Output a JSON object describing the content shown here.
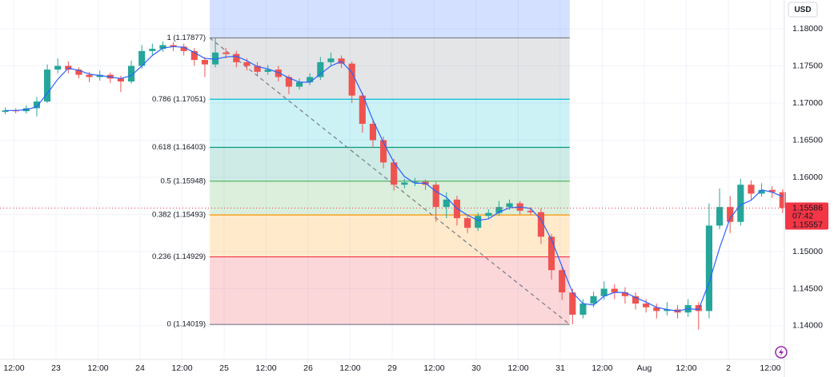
{
  "chart_data": {
    "type": "candlestick",
    "currency": "USD",
    "xlim": [
      0,
      224
    ],
    "xticks": [
      {
        "value": 4,
        "label": "12:00"
      },
      {
        "value": 16,
        "label": "23"
      },
      {
        "value": 28,
        "label": "12:00"
      },
      {
        "value": 40,
        "label": "24"
      },
      {
        "value": 52,
        "label": "12:00"
      },
      {
        "value": 64,
        "label": "25"
      },
      {
        "value": 76,
        "label": "12:00"
      },
      {
        "value": 88,
        "label": "26"
      },
      {
        "value": 100,
        "label": "12:00"
      },
      {
        "value": 112,
        "label": "29"
      },
      {
        "value": 124,
        "label": "12:00"
      },
      {
        "value": 136,
        "label": "30"
      },
      {
        "value": 148,
        "label": "12:00"
      },
      {
        "value": 160,
        "label": "31"
      },
      {
        "value": 172,
        "label": "12:00"
      },
      {
        "value": 184,
        "label": "Aug"
      },
      {
        "value": 196,
        "label": "12:00"
      },
      {
        "value": 208,
        "label": "2"
      },
      {
        "value": 220,
        "label": "12:00"
      }
    ],
    "ylim": [
      1.13548,
      1.18387
    ],
    "yticks": [
      {
        "value": 1.14,
        "label": "1.14000"
      },
      {
        "value": 1.145,
        "label": "1.14500"
      },
      {
        "value": 1.15,
        "label": "1.15000"
      },
      {
        "value": 1.155,
        "label": "1.15500"
      },
      {
        "value": 1.16,
        "label": "1.16000"
      },
      {
        "value": 1.165,
        "label": "1.16500"
      },
      {
        "value": 1.17,
        "label": "1.17000"
      },
      {
        "value": 1.175,
        "label": "1.17500"
      },
      {
        "value": 1.18,
        "label": "1.18000"
      }
    ],
    "grid": true,
    "up_color": "#26a69a",
    "down_color": "#ef5350",
    "ma_color": "#2962ff",
    "x": [
      1.5,
      4.5,
      7.5,
      10.5,
      13.5,
      16.5,
      19.5,
      22.5,
      25.5,
      28.5,
      31.5,
      34.5,
      37.5,
      40.5,
      43.5,
      46.5,
      49.5,
      52.5,
      55.5,
      58.5,
      61.5,
      64.5,
      67.5,
      70.5,
      73.5,
      76.5,
      79.5,
      82.5,
      85.5,
      88.5,
      91.5,
      94.5,
      97.5,
      100.5,
      103.5,
      106.5,
      109.5,
      112.5,
      115.5,
      118.5,
      121.5,
      124.5,
      127.5,
      130.5,
      133.5,
      136.5,
      139.5,
      142.5,
      145.5,
      148.5,
      151.5,
      154.5,
      157.5,
      160.5,
      163.5,
      166.5,
      169.5,
      172.5,
      175.5,
      178.5,
      181.5,
      184.5,
      187.5,
      190.5,
      193.5,
      196.5,
      199.5,
      202.5,
      205.5,
      208.5,
      211.5,
      214.5,
      217.5,
      220.5,
      223.5
    ],
    "open": [
      1.1688,
      1.169,
      1.1689,
      1.1693,
      1.1702,
      1.1745,
      1.175,
      1.1745,
      1.1738,
      1.1735,
      1.1738,
      1.1733,
      1.1729,
      1.175,
      1.177,
      1.1773,
      1.1778,
      1.1776,
      1.177,
      1.1758,
      1.1752,
      1.1768,
      1.1766,
      1.1755,
      1.175,
      1.1742,
      1.1745,
      1.1735,
      1.1722,
      1.1728,
      1.1735,
      1.1755,
      1.176,
      1.1753,
      1.171,
      1.1672,
      1.165,
      1.162,
      1.159,
      1.1593,
      1.1594,
      1.159,
      1.156,
      1.157,
      1.1545,
      1.1532,
      1.1548,
      1.1552,
      1.156,
      1.1565,
      1.1555,
      1.1553,
      1.152,
      1.1475,
      1.1445,
      1.1415,
      1.143,
      1.144,
      1.145,
      1.1445,
      1.144,
      1.143,
      1.1425,
      1.142,
      1.1422,
      1.1418,
      1.1428,
      1.142,
      1.1535,
      1.156,
      1.154,
      1.159,
      1.1578,
      1.1583,
      1.158
    ],
    "high": [
      1.1694,
      1.1693,
      1.1697,
      1.1708,
      1.1752,
      1.176,
      1.1756,
      1.1748,
      1.1742,
      1.1744,
      1.1741,
      1.1737,
      1.1757,
      1.1778,
      1.178,
      1.1783,
      1.1782,
      1.178,
      1.1774,
      1.1762,
      1.1788,
      1.1774,
      1.177,
      1.176,
      1.1755,
      1.1751,
      1.175,
      1.1738,
      1.1733,
      1.174,
      1.1762,
      1.1768,
      1.1764,
      1.1756,
      1.1714,
      1.1678,
      1.1655,
      1.1625,
      1.1598,
      1.1599,
      1.1597,
      1.1594,
      1.158,
      1.1575,
      1.155,
      1.1552,
      1.1557,
      1.1568,
      1.157,
      1.1568,
      1.156,
      1.1558,
      1.1524,
      1.148,
      1.145,
      1.1436,
      1.1446,
      1.146,
      1.1456,
      1.1452,
      1.1445,
      1.1436,
      1.143,
      1.1432,
      1.1428,
      1.1436,
      1.1432,
      1.1565,
      1.1585,
      1.1575,
      1.1598,
      1.1596,
      1.1592,
      1.1588,
      1.1584
    ],
    "low": [
      1.1685,
      1.1686,
      1.1686,
      1.1682,
      1.17,
      1.174,
      1.174,
      1.1733,
      1.1728,
      1.173,
      1.1727,
      1.1715,
      1.1726,
      1.1746,
      1.1765,
      1.1769,
      1.177,
      1.1764,
      1.175,
      1.1735,
      1.1748,
      1.176,
      1.1748,
      1.1744,
      1.1737,
      1.1738,
      1.1729,
      1.1712,
      1.1718,
      1.1724,
      1.1731,
      1.175,
      1.1747,
      1.17,
      1.166,
      1.164,
      1.1612,
      1.1582,
      1.1585,
      1.1588,
      1.1583,
      1.154,
      1.1545,
      1.1535,
      1.1525,
      1.1528,
      1.1544,
      1.1548,
      1.1556,
      1.155,
      1.1549,
      1.151,
      1.1462,
      1.1435,
      1.1402,
      1.141,
      1.1425,
      1.1435,
      1.1436,
      1.143,
      1.1422,
      1.1418,
      1.141,
      1.1414,
      1.141,
      1.1412,
      1.1395,
      1.141,
      1.153,
      1.1525,
      1.1535,
      1.157,
      1.1574,
      1.1572,
      1.1552
    ],
    "close": [
      1.169,
      1.1689,
      1.1693,
      1.1702,
      1.1745,
      1.175,
      1.1745,
      1.1738,
      1.1735,
      1.1738,
      1.1733,
      1.1729,
      1.175,
      1.177,
      1.1773,
      1.1778,
      1.1776,
      1.177,
      1.1758,
      1.1752,
      1.1768,
      1.1766,
      1.1755,
      1.175,
      1.1742,
      1.1745,
      1.1735,
      1.1722,
      1.1728,
      1.1735,
      1.1755,
      1.176,
      1.1753,
      1.171,
      1.1672,
      1.165,
      1.162,
      1.159,
      1.1593,
      1.1594,
      1.159,
      1.156,
      1.157,
      1.1545,
      1.1532,
      1.1548,
      1.1552,
      1.156,
      1.1565,
      1.1555,
      1.1553,
      1.152,
      1.1475,
      1.1445,
      1.1415,
      1.143,
      1.144,
      1.145,
      1.1445,
      1.144,
      1.143,
      1.1425,
      1.142,
      1.1422,
      1.1418,
      1.1428,
      1.142,
      1.1535,
      1.156,
      1.154,
      1.159,
      1.1578,
      1.1583,
      1.158,
      1.15586
    ],
    "ma": [
      1.169,
      1.169,
      1.1691,
      1.1695,
      1.1713,
      1.1732,
      1.1747,
      1.1744,
      1.1739,
      1.1737,
      1.1735,
      1.1733,
      1.1737,
      1.175,
      1.1764,
      1.1774,
      1.1776,
      1.1775,
      1.1768,
      1.176,
      1.1759,
      1.1762,
      1.1763,
      1.1757,
      1.1749,
      1.1746,
      1.1741,
      1.1734,
      1.1728,
      1.1728,
      1.1739,
      1.175,
      1.1756,
      1.1741,
      1.1712,
      1.1677,
      1.1647,
      1.162,
      1.1601,
      1.1592,
      1.1592,
      1.1581,
      1.1573,
      1.1558,
      1.1549,
      1.1542,
      1.1544,
      1.1553,
      1.1559,
      1.156,
      1.1558,
      1.1543,
      1.1516,
      1.148,
      1.1445,
      1.143,
      1.1428,
      1.144,
      1.1445,
      1.1445,
      1.1438,
      1.1432,
      1.1425,
      1.1422,
      1.142,
      1.1423,
      1.1422,
      1.1458,
      1.1505,
      1.1545,
      1.1563,
      1.1569,
      1.1583,
      1.158,
      1.1574
    ],
    "fib": {
      "x": [
        59.9,
        162.7
      ],
      "levels": [
        {
          "value": 1.17877,
          "label": "1 (1.17877)",
          "color": "#787b86"
        },
        {
          "value": 1.17051,
          "label": "0.786 (1.17051)",
          "color": "#00bcd4"
        },
        {
          "value": 1.16403,
          "label": "0.618 (1.16403)",
          "color": "#089981"
        },
        {
          "value": 1.15948,
          "label": "0.5 (1.15948)",
          "color": "#4caf50"
        },
        {
          "value": 1.15493,
          "label": "0.382 (1.15493)",
          "color": "#ff9800"
        },
        {
          "value": 1.14929,
          "label": "0.236 (1.14929)",
          "color": "#f23645"
        },
        {
          "value": 1.14019,
          "label": "0 (1.14019)",
          "color": "#787b86"
        }
      ]
    },
    "last_price": {
      "value": 1.15586,
      "label": "1.15586",
      "color": "#f23645"
    },
    "countdown": "07:42",
    "bid_price": {
      "value": 1.15557,
      "label": "1.15557"
    }
  }
}
